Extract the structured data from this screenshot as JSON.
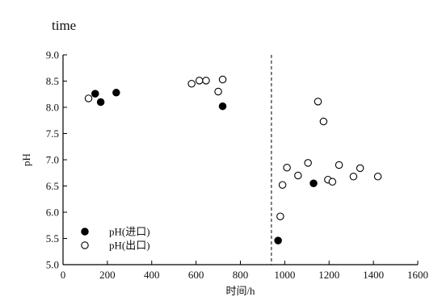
{
  "caption": "time",
  "chart_data": {
    "type": "scatter",
    "title": "",
    "xlabel": "时间/h",
    "ylabel": "pH",
    "xlim": [
      0,
      1600
    ],
    "ylim": [
      5.0,
      9.0
    ],
    "x_ticks": [
      "0",
      "200",
      "400",
      "600",
      "800",
      "1000",
      "1200",
      "1400",
      "1600"
    ],
    "y_ticks": [
      "5.0",
      "5.5",
      "6.0",
      "6.5",
      "7.0",
      "7.5",
      "8.0",
      "8.5",
      "9.0"
    ],
    "grid": false,
    "legend": "bottom-left",
    "vline_x": 940,
    "series": [
      {
        "name": "pH(进口)",
        "marker": "filled-circle",
        "color": "#000000",
        "points": [
          [
            145,
            8.26
          ],
          [
            170,
            8.1
          ],
          [
            240,
            8.28
          ],
          [
            720,
            8.02
          ],
          [
            970,
            5.46
          ],
          [
            1130,
            6.55
          ]
        ]
      },
      {
        "name": "pH(出口)",
        "marker": "open-circle",
        "color": "#000000",
        "points": [
          [
            115,
            8.17
          ],
          [
            580,
            8.45
          ],
          [
            615,
            8.51
          ],
          [
            645,
            8.51
          ],
          [
            700,
            8.3
          ],
          [
            720,
            8.53
          ],
          [
            980,
            5.92
          ],
          [
            990,
            6.52
          ],
          [
            1010,
            6.85
          ],
          [
            1060,
            6.7
          ],
          [
            1105,
            6.94
          ],
          [
            1150,
            8.11
          ],
          [
            1175,
            7.73
          ],
          [
            1195,
            6.62
          ],
          [
            1215,
            6.58
          ],
          [
            1245,
            6.9
          ],
          [
            1310,
            6.68
          ],
          [
            1340,
            6.84
          ],
          [
            1420,
            6.68
          ]
        ]
      }
    ]
  }
}
